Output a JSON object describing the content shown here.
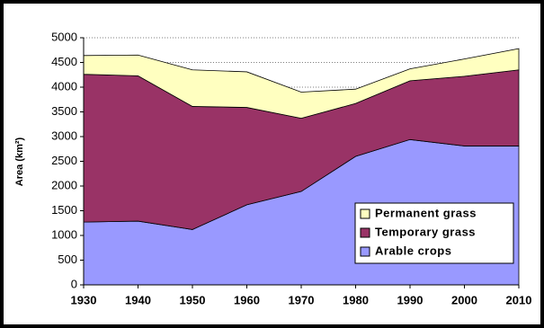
{
  "chart_data": {
    "type": "stacked-area",
    "y_label": "Area (km²)",
    "x": [
      1930,
      1940,
      1950,
      1960,
      1970,
      1980,
      1990,
      2000,
      2010
    ],
    "series": [
      {
        "name": "Arable crops",
        "color": "#9999ff",
        "values": [
          1270,
          1290,
          1120,
          1620,
          1890,
          2600,
          2940,
          2810,
          2810
        ]
      },
      {
        "name": "Temporary grass",
        "color": "#993366",
        "values": [
          2990,
          2940,
          2490,
          1970,
          1480,
          1070,
          1190,
          1410,
          1540
        ]
      },
      {
        "name": "Permanent grass",
        "color": "#ffffc0",
        "values": [
          380,
          420,
          740,
          720,
          530,
          290,
          240,
          350,
          430
        ]
      }
    ],
    "xlim": [
      1930,
      2010
    ],
    "xticks": [
      1930,
      1940,
      1950,
      1960,
      1970,
      1980,
      1990,
      2000,
      2010
    ],
    "ylim": [
      0,
      5000
    ],
    "yticks": [
      0,
      500,
      1000,
      1500,
      2000,
      2500,
      3000,
      3500,
      4000,
      4500,
      5000
    ],
    "grid": true,
    "legend": "lower-right"
  }
}
